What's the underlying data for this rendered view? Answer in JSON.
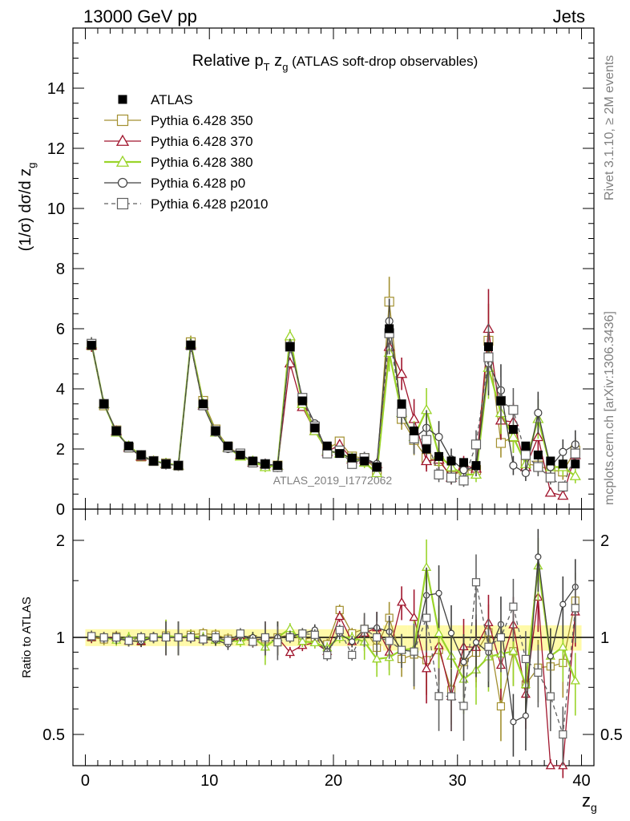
{
  "header": {
    "left": "13000 GeV pp",
    "right": "Jets"
  },
  "side_labels": {
    "rivet": "Rivet 3.1.10, ≥ 2M events",
    "mcplots": "mcplots.cern.ch [arXiv:1306.3436]"
  },
  "chart_data": [
    {
      "type": "line",
      "title_parts": {
        "main": "Relative p",
        "sub_t": "T",
        "mid": " z",
        "sub_g": "g",
        "suffix": " (ATLAS soft-drop observables)"
      },
      "xlabel": "z",
      "xlabel_sub": "g",
      "ylabel": "(1/σ) dσ/d z",
      "ylabel_sub": "g",
      "xlim": [
        -1,
        41
      ],
      "ylim": [
        0,
        16
      ],
      "xticks": [
        0,
        10,
        20,
        30,
        40
      ],
      "yticks": [
        0,
        2,
        4,
        6,
        8,
        10,
        12,
        14
      ],
      "watermark": "ATLAS_2019_I1772062",
      "x": [
        0.5,
        1.5,
        2.5,
        3.5,
        4.5,
        5.5,
        6.5,
        7.5,
        8.5,
        9.5,
        10.5,
        11.5,
        12.5,
        13.5,
        14.5,
        15.5,
        16.5,
        17.5,
        18.5,
        19.5,
        20.5,
        21.5,
        22.5,
        23.5,
        24.5,
        25.5,
        26.5,
        27.5,
        28.5,
        29.5,
        30.5,
        31.5,
        32.5,
        33.5,
        34.5,
        35.5,
        36.5,
        37.5,
        38.5,
        39.5
      ],
      "series": [
        {
          "name": "ATLAS",
          "marker": "filled-square",
          "color": "#000000",
          "values": [
            5.45,
            3.5,
            2.6,
            2.1,
            1.8,
            1.6,
            1.5,
            1.45,
            5.45,
            3.5,
            2.6,
            2.1,
            1.8,
            1.6,
            1.5,
            1.45,
            5.4,
            3.6,
            2.7,
            2.1,
            1.85,
            1.7,
            1.6,
            1.4,
            6.0,
            3.5,
            2.6,
            2.0,
            1.75,
            1.6,
            1.55,
            1.45,
            5.4,
            3.6,
            2.65,
            2.1,
            1.8,
            1.6,
            1.5,
            1.5
          ]
        },
        {
          "name": "Pythia 6.428 350",
          "marker": "open-square",
          "color": "#a39030",
          "values": [
            5.45,
            3.45,
            2.62,
            2.05,
            1.75,
            1.6,
            1.52,
            1.45,
            5.55,
            3.6,
            2.65,
            2.08,
            1.8,
            1.58,
            1.48,
            1.45,
            5.5,
            3.55,
            2.7,
            2.0,
            2.25,
            1.75,
            1.7,
            1.3,
            6.9,
            3.0,
            2.3,
            1.7,
            1.6,
            1.1,
            1.3,
            1.3,
            5.6,
            2.2,
            2.4,
            1.5,
            1.45,
            1.3,
            1.25,
            1.95
          ]
        },
        {
          "name": "Pythia 6.428 370",
          "marker": "open-triangle",
          "color": "#a0152d",
          "values": [
            5.45,
            3.5,
            2.6,
            2.05,
            1.75,
            1.6,
            1.5,
            1.45,
            5.45,
            3.45,
            2.55,
            2.05,
            1.8,
            1.55,
            1.5,
            1.45,
            4.85,
            3.4,
            2.6,
            1.9,
            2.15,
            1.65,
            1.65,
            1.5,
            5.4,
            4.5,
            3.0,
            1.6,
            1.65,
            1.05,
            1.45,
            1.35,
            6.0,
            2.95,
            2.9,
            1.4,
            2.4,
            0.55,
            0.45,
            1.8
          ]
        },
        {
          "name": "Pythia 6.428 380",
          "marker": "open-triangle",
          "color": "#9ad42a",
          "values": [
            5.5,
            3.5,
            2.55,
            2.1,
            1.78,
            1.6,
            1.52,
            1.45,
            5.5,
            3.5,
            2.55,
            2.05,
            1.75,
            1.6,
            1.4,
            1.45,
            5.75,
            3.5,
            2.6,
            1.95,
            1.85,
            1.7,
            1.55,
            1.2,
            5.2,
            3.2,
            2.4,
            3.3,
            1.8,
            1.4,
            1.15,
            1.15,
            4.7,
            3.2,
            2.4,
            1.5,
            3.0,
            1.4,
            1.4,
            1.1
          ]
        },
        {
          "name": "Pythia 6.428 p0",
          "marker": "open-circle",
          "color": "#404040",
          "values": [
            5.5,
            3.5,
            2.58,
            2.05,
            1.75,
            1.6,
            1.5,
            1.45,
            5.45,
            3.45,
            2.55,
            2.0,
            1.82,
            1.6,
            1.5,
            1.45,
            5.45,
            3.7,
            2.85,
            1.9,
            1.9,
            1.65,
            1.7,
            1.5,
            6.25,
            3.2,
            2.35,
            2.7,
            2.4,
            1.65,
            1.3,
            1.4,
            4.85,
            3.95,
            1.45,
            1.2,
            3.2,
            1.4,
            1.9,
            2.15
          ]
        },
        {
          "name": "Pythia 6.428 p2010",
          "marker": "dashed-open-square",
          "color": "#606060",
          "values": [
            5.5,
            3.5,
            2.6,
            2.05,
            1.8,
            1.6,
            1.5,
            1.45,
            5.45,
            3.45,
            2.6,
            2.05,
            1.85,
            1.55,
            1.5,
            1.4,
            5.4,
            3.7,
            2.75,
            1.85,
            1.95,
            1.5,
            1.7,
            1.4,
            5.85,
            3.2,
            2.35,
            2.3,
            1.15,
            1.05,
            0.95,
            2.15,
            5.05,
            3.6,
            3.3,
            1.8,
            1.4,
            1.05,
            0.75,
            1.85
          ]
        }
      ]
    },
    {
      "type": "line",
      "ylabel": "Ratio to ATLAS",
      "scale": "log",
      "ylim": [
        0.4,
        2.5
      ],
      "yticks": [
        0.5,
        1,
        2
      ],
      "reference": 1
    }
  ]
}
